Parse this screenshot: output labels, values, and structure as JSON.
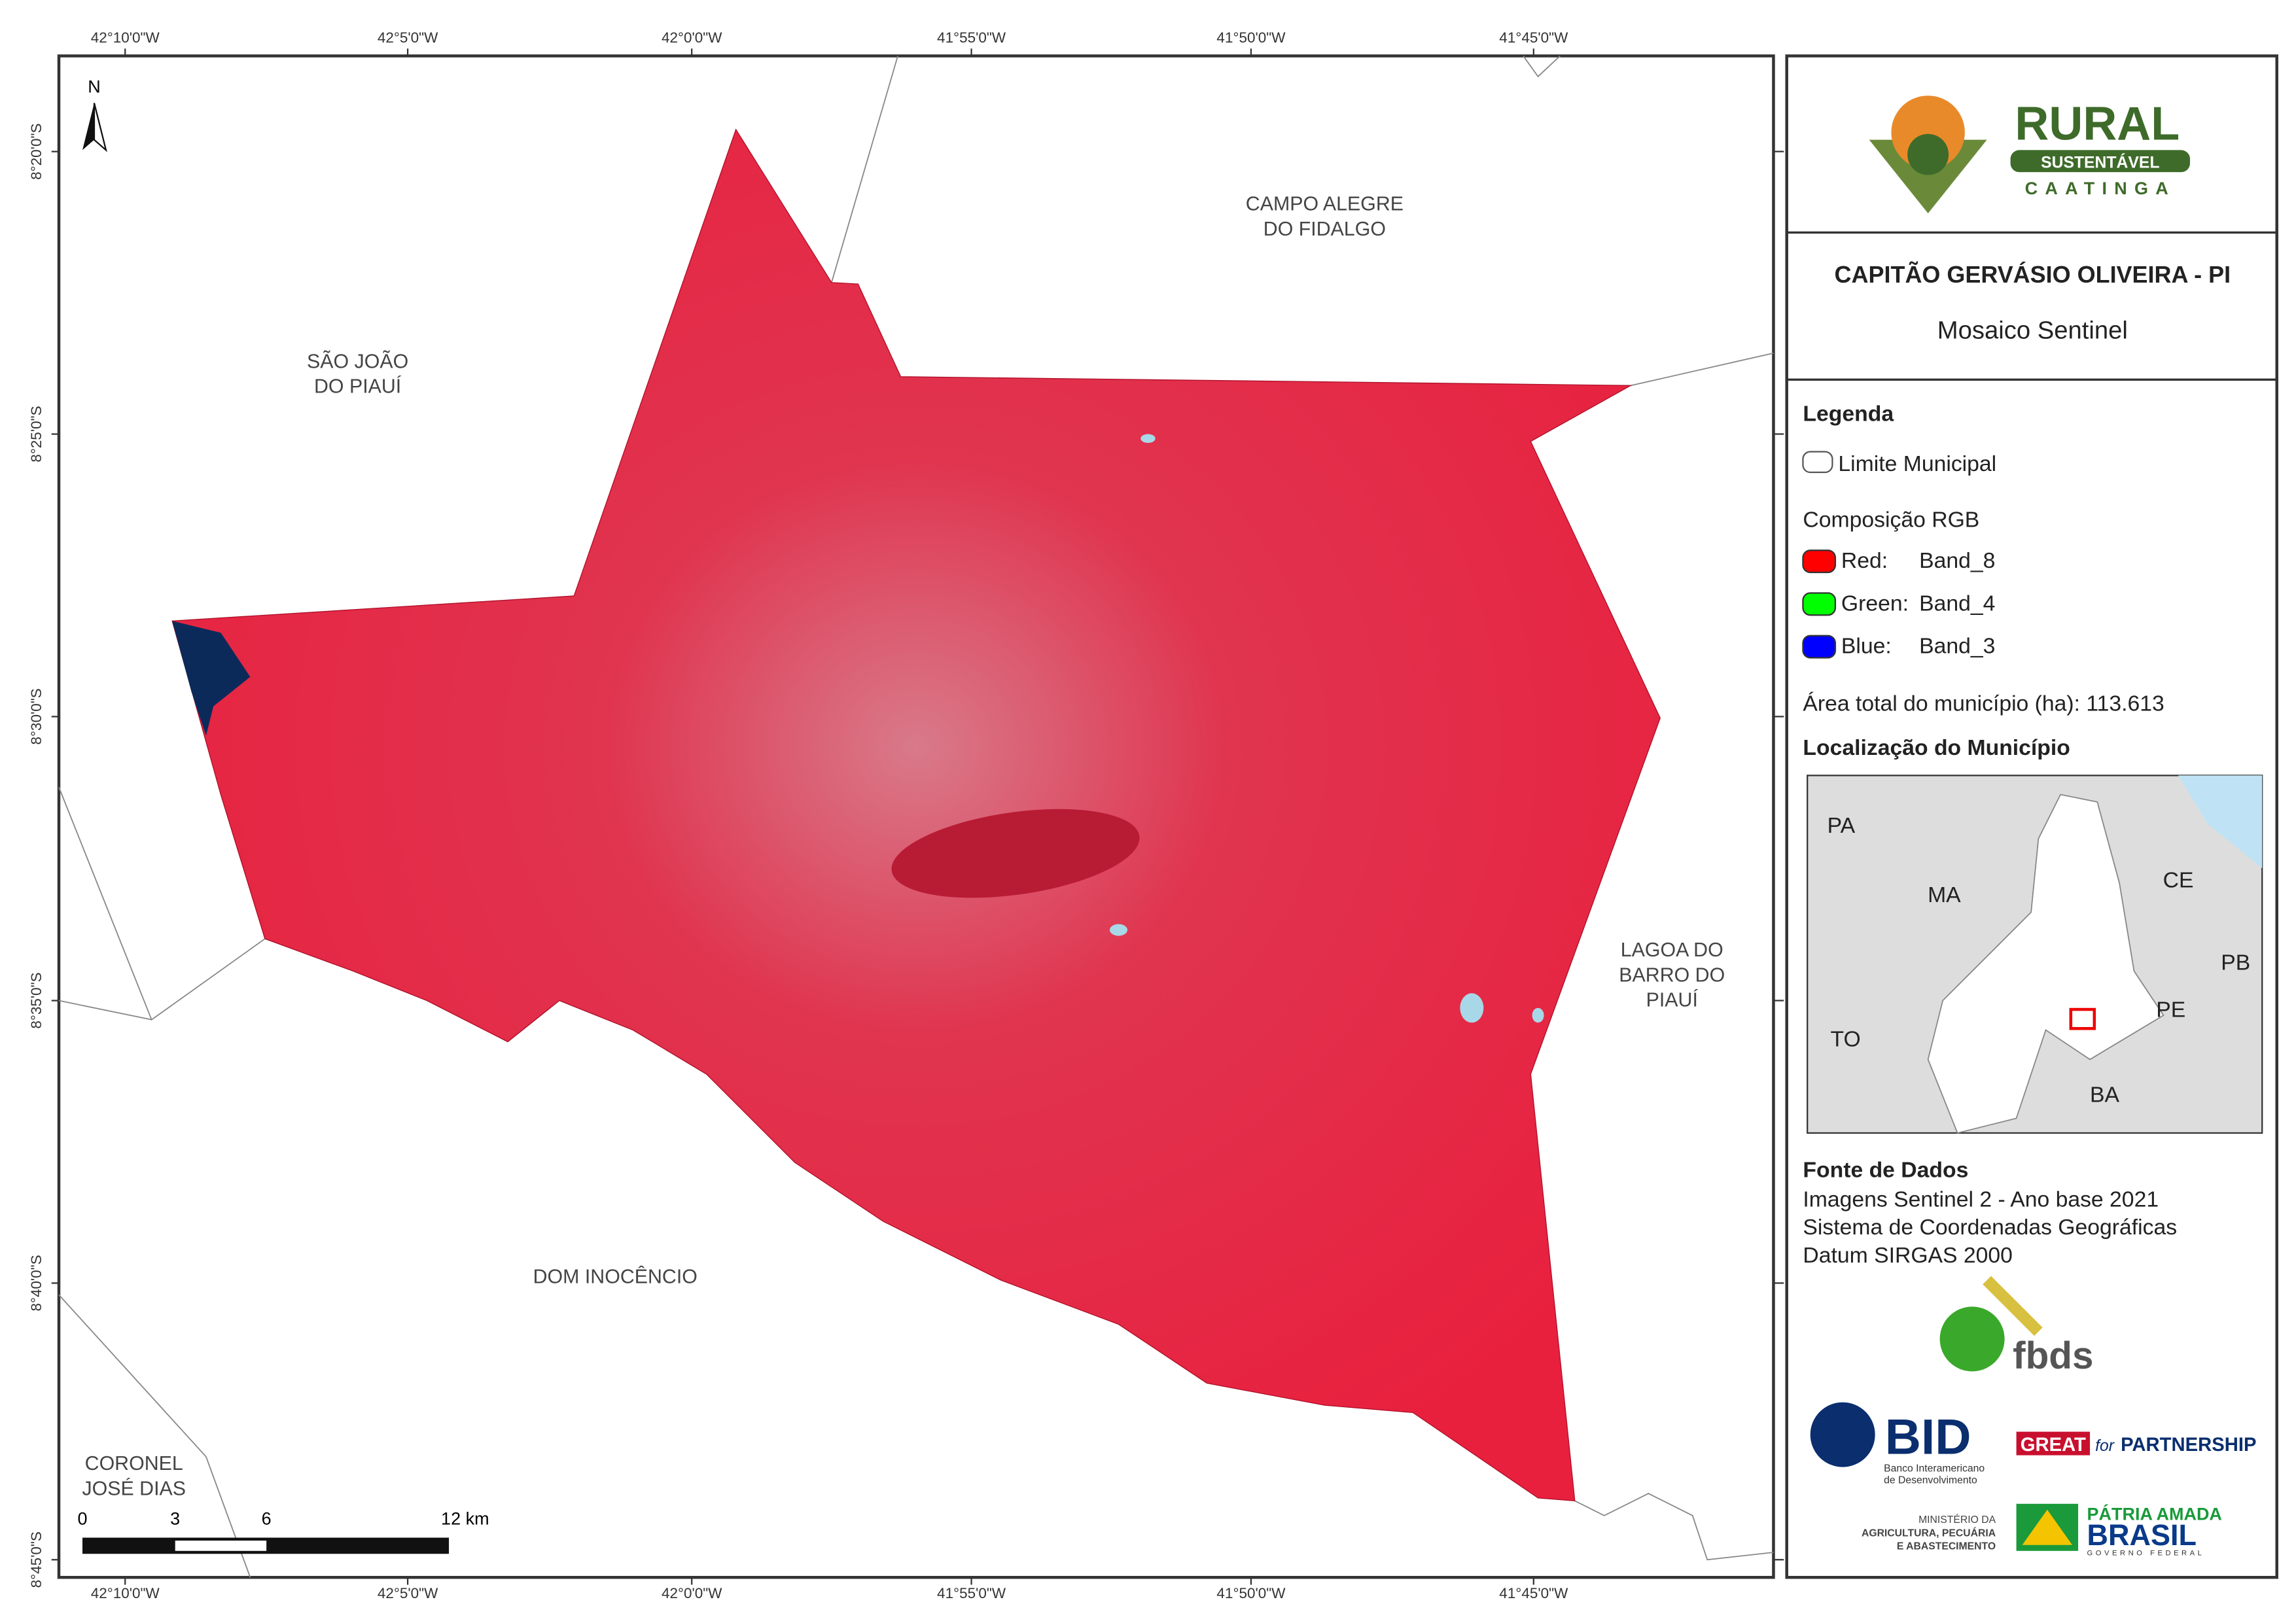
{
  "map": {
    "top_coordinates": [
      "42°10'0\"W",
      "42°5'0\"W",
      "42°0'0\"W",
      "41°55'0\"W",
      "41°50'0\"W",
      "41°45'0\"W"
    ],
    "bottom_coordinates": [
      "42°10'0\"W",
      "42°5'0\"W",
      "42°0'0\"W",
      "41°55'0\"W",
      "41°50'0\"W",
      "41°45'0\"W"
    ],
    "left_coordinates": [
      "8°20'0\"S",
      "8°25'0\"S",
      "8°30'0\"S",
      "8°35'0\"S",
      "8°40'0\"S",
      "8°45'0\"S"
    ],
    "north_label": "N",
    "place_labels": [
      {
        "lines": [
          "CAMPO ALEGRE",
          "DO FIDALGO"
        ]
      },
      {
        "lines": [
          "SÃO JOÃO",
          "DO PIAUÍ"
        ]
      },
      {
        "lines": [
          "LAGOA DO",
          "BARRO DO",
          "PIAUÍ"
        ]
      },
      {
        "lines": [
          "DOM INOCÊNCIO"
        ]
      },
      {
        "lines": [
          "CORONEL",
          "JOSÉ DIAS"
        ]
      }
    ],
    "scale_labels": [
      "0",
      "3",
      "6",
      "12 km"
    ]
  },
  "panel": {
    "logo": {
      "word": "RURAL",
      "band": "SUSTENTÁVEL",
      "region": "CAATINGA"
    },
    "title": "CAPITÃO GERVÁSIO OLIVEIRA - PI",
    "subtitle": "Mosaico Sentinel",
    "legend_title": "Legenda",
    "boundary_label": "Limite Municipal",
    "rgb_title": "Composição RGB",
    "bands": [
      {
        "channel": "Red:",
        "band": "Band_8",
        "color": "#ff0000"
      },
      {
        "channel": "Green:",
        "band": "Band_4",
        "color": "#00ff00"
      },
      {
        "channel": "Blue:",
        "band": "Band_3",
        "color": "#0000ff"
      }
    ],
    "area": "Área total do município (ha): 113.613",
    "location_title": "Localização do Município",
    "inset_labels": [
      "PA",
      "MA",
      "CE",
      "PB",
      "PE",
      "TO",
      "BA"
    ],
    "sources_title": "Fonte de Dados",
    "sources": [
      "Imagens Sentinel 2 - Ano base 2021",
      "Sistema de Coordenadas Geográficas",
      "Datum SIRGAS 2000"
    ],
    "partners": {
      "fbds": "fbds",
      "bid": "BID",
      "bid_name": [
        "Banco Interamericano",
        "de Desenvolvimento"
      ],
      "great": "GREAT",
      "for": "for",
      "partnership": "PARTNERSHIP",
      "ministry": [
        "MINISTÉRIO DA",
        "AGRICULTURA, PECUÁRIA",
        "E ABASTECIMENTO"
      ],
      "brasil_top": "PÁTRIA AMADA",
      "brasil": "BRASIL",
      "brasil_sub": "GOVERNO FEDERAL"
    }
  }
}
